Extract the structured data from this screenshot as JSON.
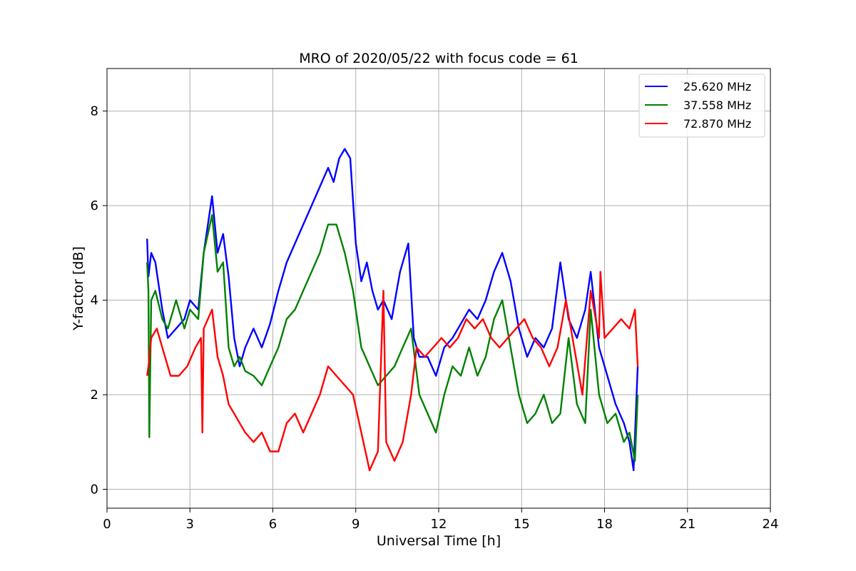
{
  "chart_data": {
    "type": "line",
    "title": "MRO of 2020/05/22 with focus code = 61",
    "xlabel": "Universal Time [h]",
    "ylabel": "Y-factor [dB]",
    "xlim": [
      0,
      24
    ],
    "ylim": [
      -0.4,
      8.9
    ],
    "xticks": [
      0,
      3,
      6,
      9,
      12,
      15,
      18,
      21,
      24
    ],
    "yticks": [
      0,
      2,
      4,
      6,
      8
    ],
    "grid": true,
    "legend_position": "top-right",
    "series": [
      {
        "name": "25.620 MHz",
        "color": "#0000ff",
        "x": [
          1.45,
          1.5,
          1.6,
          1.75,
          2.0,
          2.2,
          2.5,
          2.8,
          3.0,
          3.3,
          3.5,
          3.8,
          4.0,
          4.2,
          4.4,
          4.6,
          4.8,
          5.0,
          5.3,
          5.6,
          5.9,
          6.2,
          6.5,
          6.8,
          7.1,
          7.4,
          7.7,
          8.0,
          8.2,
          8.4,
          8.6,
          8.8,
          9.0,
          9.2,
          9.4,
          9.6,
          9.8,
          10.0,
          10.3,
          10.6,
          10.9,
          11.1,
          11.3,
          11.6,
          11.9,
          12.2,
          12.5,
          12.8,
          13.1,
          13.4,
          13.7,
          14.0,
          14.3,
          14.6,
          14.9,
          15.2,
          15.5,
          15.8,
          16.1,
          16.4,
          16.7,
          17.0,
          17.3,
          17.5,
          17.8,
          18.1,
          18.4,
          18.7,
          18.9,
          19.05,
          19.2
        ],
        "values": [
          5.3,
          4.5,
          5.0,
          4.8,
          3.8,
          3.2,
          3.4,
          3.6,
          4.0,
          3.8,
          5.0,
          6.2,
          5.0,
          5.4,
          4.5,
          3.2,
          2.6,
          3.0,
          3.4,
          3.0,
          3.5,
          4.2,
          4.8,
          5.2,
          5.6,
          6.0,
          6.4,
          6.8,
          6.5,
          7.0,
          7.2,
          7.0,
          5.2,
          4.4,
          4.8,
          4.2,
          3.8,
          4.0,
          3.6,
          4.6,
          5.2,
          3.2,
          2.8,
          2.8,
          2.4,
          3.0,
          3.2,
          3.5,
          3.8,
          3.6,
          4.0,
          4.6,
          5.0,
          4.4,
          3.4,
          2.8,
          3.2,
          3.0,
          3.4,
          4.8,
          3.6,
          3.2,
          3.8,
          4.6,
          3.0,
          2.4,
          1.8,
          1.4,
          1.0,
          0.4,
          2.6
        ]
      },
      {
        "name": "37.558 MHz",
        "color": "#008000",
        "x": [
          1.45,
          1.5,
          1.53,
          1.6,
          1.75,
          2.0,
          2.2,
          2.5,
          2.8,
          3.0,
          3.3,
          3.5,
          3.8,
          4.0,
          4.2,
          4.4,
          4.6,
          4.8,
          5.0,
          5.3,
          5.6,
          5.9,
          6.2,
          6.5,
          6.8,
          7.1,
          7.4,
          7.7,
          8.0,
          8.3,
          8.6,
          8.9,
          9.2,
          9.5,
          9.8,
          10.1,
          10.4,
          10.7,
          11.0,
          11.3,
          11.6,
          11.9,
          12.2,
          12.5,
          12.8,
          13.1,
          13.4,
          13.7,
          14.0,
          14.3,
          14.6,
          14.9,
          15.2,
          15.5,
          15.8,
          16.1,
          16.4,
          16.7,
          17.0,
          17.3,
          17.5,
          17.8,
          18.1,
          18.4,
          18.7,
          18.9,
          19.1,
          19.2
        ],
        "values": [
          4.8,
          4.2,
          1.1,
          4.0,
          4.2,
          3.6,
          3.4,
          4.0,
          3.4,
          3.8,
          3.6,
          5.0,
          5.8,
          4.6,
          4.8,
          3.0,
          2.6,
          2.8,
          2.5,
          2.4,
          2.2,
          2.6,
          3.0,
          3.6,
          3.8,
          4.2,
          4.6,
          5.0,
          5.6,
          5.6,
          5.0,
          4.2,
          3.0,
          2.6,
          2.2,
          2.4,
          2.6,
          3.0,
          3.4,
          2.0,
          1.6,
          1.2,
          2.0,
          2.6,
          2.4,
          3.0,
          2.4,
          2.8,
          3.6,
          4.0,
          3.0,
          2.0,
          1.4,
          1.6,
          2.0,
          1.4,
          1.6,
          3.2,
          1.8,
          1.4,
          3.8,
          2.0,
          1.4,
          1.6,
          1.0,
          1.2,
          0.6,
          2.0
        ]
      },
      {
        "name": "72.870 MHz",
        "color": "#ff0000",
        "x": [
          1.45,
          1.5,
          1.6,
          1.8,
          2.0,
          2.3,
          2.6,
          2.9,
          3.2,
          3.4,
          3.45,
          3.5,
          3.8,
          4.0,
          4.2,
          4.4,
          4.6,
          4.8,
          5.0,
          5.3,
          5.6,
          5.9,
          6.2,
          6.5,
          6.8,
          7.1,
          7.4,
          7.7,
          8.0,
          8.3,
          8.6,
          8.9,
          9.2,
          9.5,
          9.8,
          10.0,
          10.1,
          10.4,
          10.7,
          11.0,
          11.2,
          11.5,
          11.8,
          12.1,
          12.4,
          12.7,
          13.0,
          13.3,
          13.6,
          13.9,
          14.2,
          14.5,
          14.8,
          15.1,
          15.4,
          15.7,
          16.0,
          16.3,
          16.6,
          16.9,
          17.2,
          17.5,
          17.8,
          17.85,
          18.0,
          18.3,
          18.6,
          18.9,
          19.1,
          19.2
        ],
        "values": [
          2.4,
          2.6,
          3.2,
          3.4,
          3.0,
          2.4,
          2.4,
          2.6,
          3.0,
          3.2,
          1.2,
          3.4,
          3.8,
          2.8,
          2.4,
          1.8,
          1.6,
          1.4,
          1.2,
          1.0,
          1.2,
          0.8,
          0.8,
          1.4,
          1.6,
          1.2,
          1.6,
          2.0,
          2.6,
          2.4,
          2.2,
          2.0,
          1.2,
          0.4,
          0.8,
          4.2,
          1.0,
          0.6,
          1.0,
          2.0,
          3.0,
          2.8,
          3.0,
          3.2,
          3.0,
          3.2,
          3.6,
          3.4,
          3.6,
          3.2,
          3.0,
          3.2,
          3.4,
          3.6,
          3.2,
          3.0,
          2.6,
          3.0,
          4.0,
          3.0,
          2.0,
          4.2,
          3.2,
          4.6,
          3.2,
          3.4,
          3.6,
          3.4,
          3.8,
          2.6
        ]
      }
    ]
  }
}
